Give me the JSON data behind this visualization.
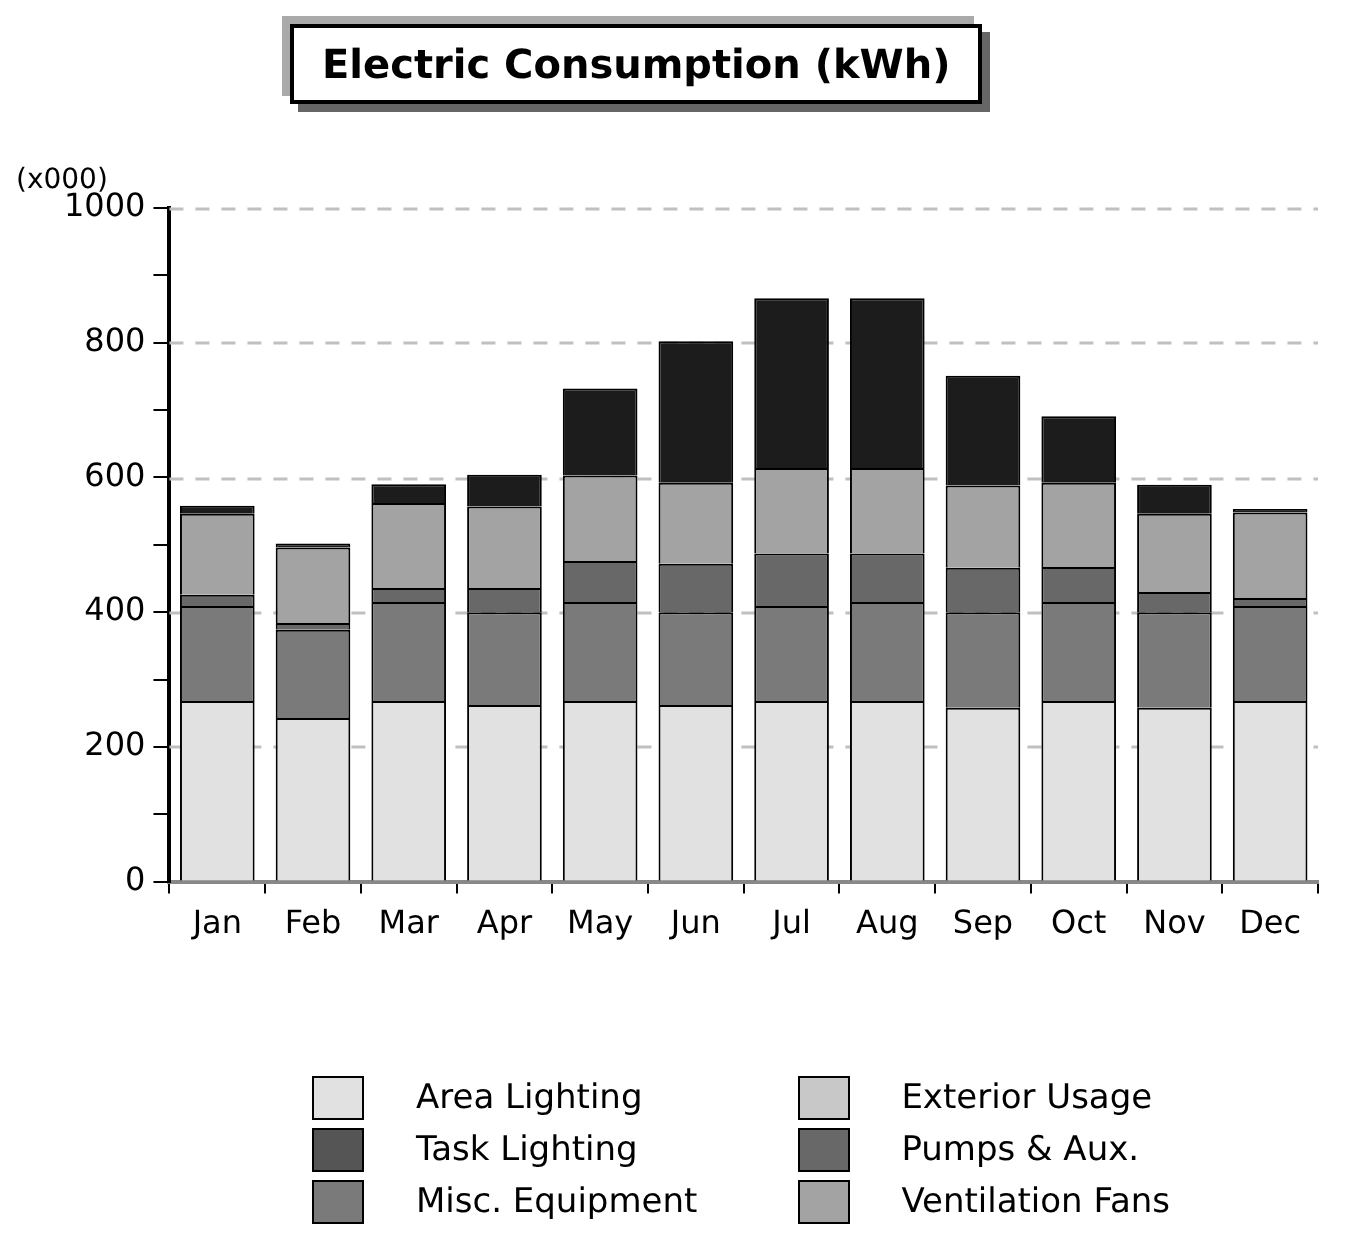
{
  "chart_data": {
    "type": "bar",
    "title": "Electric Consumption (kWh)",
    "ylabel": "(x000)",
    "categories": [
      "Jan",
      "Feb",
      "Mar",
      "Apr",
      "May",
      "Jun",
      "Jul",
      "Aug",
      "Sep",
      "Oct",
      "Nov",
      "Dec"
    ],
    "stacked": true,
    "series": [
      {
        "name": "Area Lighting",
        "color": "#e1e1e1",
        "values": [
          268,
          243,
          268,
          262,
          268,
          262,
          268,
          268,
          258,
          268,
          258,
          268
        ]
      },
      {
        "name": "Task Lighting",
        "color": "#555555",
        "values": [
          0,
          0,
          0,
          0,
          0,
          0,
          0,
          0,
          0,
          0,
          0,
          0
        ]
      },
      {
        "name": "Misc. Equipment",
        "color": "#7a7a7a",
        "values": [
          141,
          131,
          147,
          138,
          147,
          138,
          141,
          147,
          142,
          147,
          142,
          141
        ]
      },
      {
        "name": "Exterior Usage",
        "color": "#c8c8c8",
        "values": [
          0,
          0,
          0,
          0,
          0,
          0,
          0,
          0,
          0,
          0,
          0,
          0
        ]
      },
      {
        "name": "Pumps & Aux.",
        "color": "#686868",
        "values": [
          17,
          10,
          21,
          36,
          61,
          72,
          78,
          72,
          66,
          52,
          30,
          12
        ]
      },
      {
        "name": "Ventilation Fans",
        "color": "#a3a3a3",
        "values": [
          120,
          112,
          126,
          121,
          127,
          120,
          127,
          127,
          122,
          125,
          116,
          127
        ]
      },
      {
        "color": "#1c1c1c",
        "values": [
          12,
          6,
          28,
          47,
          129,
          210,
          252,
          252,
          163,
          99,
          43,
          5
        ]
      }
    ],
    "ylim": [
      0,
      1000
    ],
    "yticks": [
      0,
      {
        "value": 100,
        "label": null
      },
      200,
      {
        "value": 300,
        "label": null
      },
      400,
      {
        "value": 500,
        "label": null
      },
      600,
      {
        "value": 700,
        "label": null
      },
      800,
      {
        "value": 900,
        "label": null
      },
      1000
    ],
    "grid": "y",
    "legend": "bottom"
  }
}
